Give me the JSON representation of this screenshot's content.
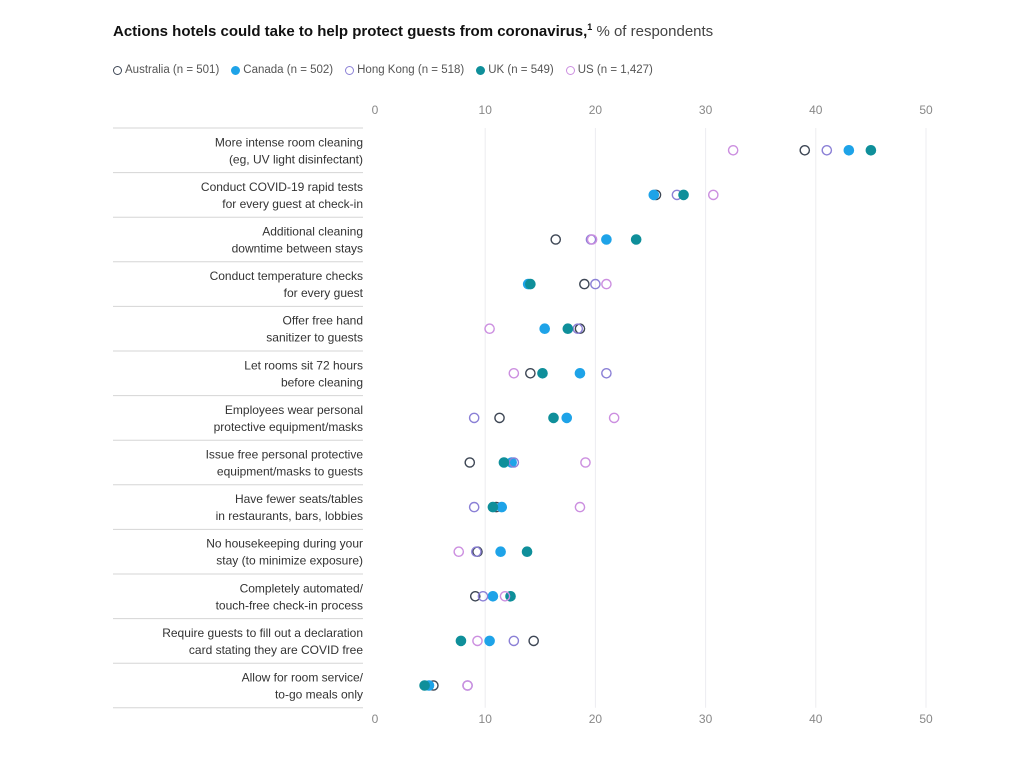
{
  "chart_data": {
    "type": "scatter",
    "title": "Actions hotels could take to help protect guests from coronavirus,",
    "title_footnote": "1",
    "subtitle": "% of respondents",
    "xlim": [
      0,
      50
    ],
    "xticks": [
      0,
      10,
      20,
      30,
      40,
      50
    ],
    "grid": true,
    "legend_position": "top-left",
    "series": [
      {
        "name": "Australia (n = 501)",
        "color": "#3d4654",
        "filled": false
      },
      {
        "name": "Canada (n = 502)",
        "color": "#1ea3e8",
        "filled": true
      },
      {
        "name": "Hong Kong (n = 518)",
        "color": "#8b80d6",
        "filled": false
      },
      {
        "name": "UK (n = 549)",
        "color": "#0f8f9a",
        "filled": true
      },
      {
        "name": "US (n = 1,427)",
        "color": "#cc8fe0",
        "filled": false
      }
    ],
    "categories": [
      {
        "line1": "More intense room cleaning",
        "line2": "(eg, UV light disinfectant)",
        "values": [
          39,
          43,
          41,
          45,
          32.5
        ]
      },
      {
        "line1": "Conduct COVID-19 rapid tests",
        "line2": "for every guest at check-in",
        "values": [
          25.5,
          25.3,
          27.4,
          28,
          30.7
        ]
      },
      {
        "line1": "Additional cleaning",
        "line2": "downtime between stays",
        "values": [
          16.4,
          21,
          19.6,
          23.7,
          19.7
        ]
      },
      {
        "line1": "Conduct temperature checks",
        "line2": "for every guest",
        "values": [
          19,
          13.9,
          20,
          14.1,
          21
        ]
      },
      {
        "line1": "Offer free hand",
        "line2": "sanitizer to guests",
        "values": [
          18.6,
          15.4,
          18.4,
          17.5,
          10.4
        ]
      },
      {
        "line1": "Let rooms sit 72 hours",
        "line2": "before cleaning",
        "values": [
          14.1,
          18.6,
          21,
          15.2,
          12.6
        ]
      },
      {
        "line1": "Employees wear personal",
        "line2": "protective equipment/masks",
        "values": [
          11.3,
          17.4,
          9,
          16.2,
          21.7
        ]
      },
      {
        "line1": "Issue free personal protective",
        "line2": "equipment/masks to guests",
        "values": [
          8.6,
          12.4,
          12.6,
          11.7,
          19.1
        ]
      },
      {
        "line1": "Have fewer seats/tables",
        "line2": "in restaurants, bars, lobbies",
        "values": [
          11,
          11.5,
          9,
          10.7,
          18.6
        ]
      },
      {
        "line1": "No housekeeping during your",
        "line2": "stay (to minimize exposure)",
        "values": [
          9.3,
          11.4,
          9.2,
          13.8,
          7.6
        ]
      },
      {
        "line1": "Completely automated/",
        "line2": "touch-free check-in process",
        "values": [
          9.1,
          10.7,
          9.8,
          12.3,
          11.8
        ]
      },
      {
        "line1": "Require guests to fill out a declaration",
        "line2": "card stating they are COVID free",
        "values": [
          14.4,
          10.4,
          12.6,
          7.8,
          9.3
        ]
      },
      {
        "line1": "Allow for room service/",
        "line2": "to-go meals only",
        "values": [
          5.3,
          4.9,
          8.4,
          4.5,
          8.4
        ]
      }
    ]
  }
}
